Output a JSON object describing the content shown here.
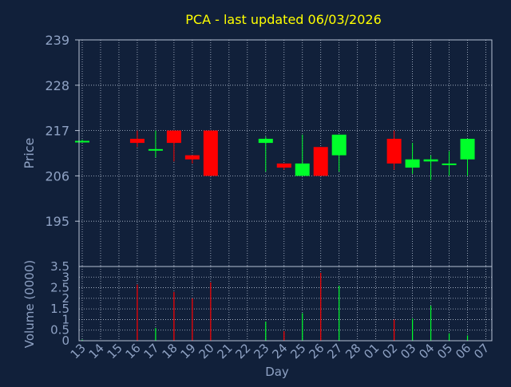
{
  "colors": {
    "background": "#11203a",
    "title": "#ffff00",
    "axis_text": "#8fa2c4",
    "grid": "#b8c2d4",
    "up": "#00ff2a",
    "down": "#ff0000"
  },
  "chart_data": [
    {
      "type": "candlestick",
      "title": "PCA - last updated 06/03/2026",
      "ylabel": "Price",
      "ylim": [
        184,
        239
      ],
      "yticks": [
        "239",
        "228",
        "217",
        "206",
        "195"
      ],
      "ytick_values": [
        239,
        228,
        217,
        206,
        195
      ],
      "grid": true,
      "candles": [
        {
          "x": "13",
          "open": 214.5,
          "high": 214.8,
          "low": 214.3,
          "close": 214.5
        },
        {
          "x": "16",
          "open": 215.0,
          "high": 217.0,
          "low": 213.0,
          "close": 214.0
        },
        {
          "x": "17",
          "open": 212.5,
          "high": 217.0,
          "low": 210.5,
          "close": 212.5
        },
        {
          "x": "18",
          "open": 217.0,
          "high": 217.0,
          "low": 209.5,
          "close": 214.0
        },
        {
          "x": "19",
          "open": 211.0,
          "high": 211.0,
          "low": 209.0,
          "close": 210.0
        },
        {
          "x": "20",
          "open": 217.0,
          "high": 217.0,
          "low": 206.0,
          "close": 206.0
        },
        {
          "x": "23",
          "open": 214.0,
          "high": 215.5,
          "low": 207.0,
          "close": 215.0
        },
        {
          "x": "24",
          "open": 209.0,
          "high": 209.0,
          "low": 207.5,
          "close": 208.0
        },
        {
          "x": "25",
          "open": 206.0,
          "high": 216.0,
          "low": 206.0,
          "close": 209.0
        },
        {
          "x": "26",
          "open": 213.0,
          "high": 213.0,
          "low": 206.0,
          "close": 206.0
        },
        {
          "x": "27",
          "open": 211.0,
          "high": 216.0,
          "low": 207.0,
          "close": 216.0
        },
        {
          "x": "02",
          "open": 215.0,
          "high": 217.0,
          "low": 207.5,
          "close": 209.0
        },
        {
          "x": "03",
          "open": 208.0,
          "high": 214.0,
          "low": 206.5,
          "close": 210.0
        },
        {
          "x": "04",
          "open": 209.5,
          "high": 211.0,
          "low": 205.0,
          "close": 210.0
        },
        {
          "x": "05",
          "open": 209.0,
          "high": 212.0,
          "low": 206.0,
          "close": 209.0
        },
        {
          "x": "06",
          "open": 210.0,
          "high": 215.0,
          "low": 206.0,
          "close": 215.0
        }
      ]
    },
    {
      "type": "bar",
      "xlabel": "Day",
      "ylabel": "Volume (0000)",
      "ylim": [
        0,
        3.5
      ],
      "yticks": [
        "3.5",
        "3",
        "2.5",
        "2",
        "1.5",
        "1",
        "0.5",
        "0"
      ],
      "ytick_values": [
        3.5,
        3,
        2.5,
        2,
        1.5,
        1,
        0.5,
        0
      ],
      "grid": true,
      "categories": [
        "13",
        "14",
        "15",
        "16",
        "17",
        "18",
        "19",
        "20",
        "21",
        "22",
        "23",
        "24",
        "25",
        "26",
        "27",
        "28",
        "01",
        "02",
        "03",
        "04",
        "05",
        "06",
        "07"
      ],
      "bars": [
        {
          "x": "13",
          "value": 0.05,
          "direction": "up"
        },
        {
          "x": "16",
          "value": 2.65,
          "direction": "down"
        },
        {
          "x": "17",
          "value": 0.6,
          "direction": "up"
        },
        {
          "x": "18",
          "value": 2.3,
          "direction": "down"
        },
        {
          "x": "19",
          "value": 2.0,
          "direction": "down"
        },
        {
          "x": "20",
          "value": 2.75,
          "direction": "down"
        },
        {
          "x": "23",
          "value": 0.9,
          "direction": "up"
        },
        {
          "x": "24",
          "value": 0.45,
          "direction": "down"
        },
        {
          "x": "25",
          "value": 1.3,
          "direction": "up"
        },
        {
          "x": "26",
          "value": 3.2,
          "direction": "down"
        },
        {
          "x": "27",
          "value": 2.6,
          "direction": "up"
        },
        {
          "x": "02",
          "value": 1.0,
          "direction": "down"
        },
        {
          "x": "03",
          "value": 1.05,
          "direction": "up"
        },
        {
          "x": "04",
          "value": 1.65,
          "direction": "up"
        },
        {
          "x": "05",
          "value": 0.35,
          "direction": "up"
        },
        {
          "x": "06",
          "value": 0.25,
          "direction": "up"
        }
      ]
    }
  ]
}
